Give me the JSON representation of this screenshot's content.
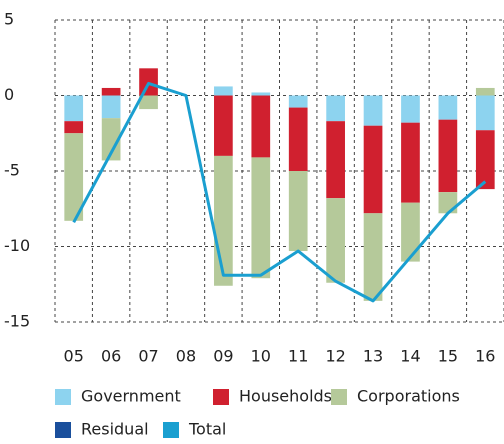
{
  "chart_data": {
    "type": "stacked-bar-line",
    "categories": [
      "05",
      "06",
      "07",
      "08",
      "09",
      "10",
      "11",
      "12",
      "13",
      "14",
      "15",
      "16"
    ],
    "series": [
      {
        "name": "Government",
        "color": "#8dd3ef",
        "type": "bar",
        "values": [
          -1.7,
          -1.5,
          0,
          0,
          0.6,
          0.2,
          -0.8,
          -1.7,
          -2.0,
          -1.8,
          -1.6,
          -2.3
        ]
      },
      {
        "name": "Households",
        "color": "#d0202f",
        "type": "bar",
        "values": [
          -0.8,
          0.5,
          1.8,
          0,
          -4.0,
          -4.1,
          -4.2,
          -5.1,
          -5.8,
          -5.3,
          -4.8,
          -3.9
        ]
      },
      {
        "name": "Corporations",
        "color": "#b5c99a",
        "type": "bar",
        "values": [
          -5.8,
          -2.8,
          -0.9,
          0,
          -8.6,
          -8.0,
          -5.3,
          -5.6,
          -5.8,
          -3.9,
          -1.4,
          0.5
        ]
      },
      {
        "name": "Residual",
        "color": "#1a4f9c",
        "type": "bar",
        "values": [
          null,
          null,
          null,
          null,
          null,
          null,
          null,
          null,
          null,
          null,
          null,
          null
        ]
      },
      {
        "name": "Total",
        "color": "#1a9fd0",
        "type": "line",
        "values": [
          -8.4,
          -3.8,
          0.8,
          0,
          -11.9,
          -11.9,
          -10.3,
          -12.3,
          -13.6,
          -10.7,
          -7.8,
          -5.7
        ]
      }
    ],
    "ylim": [
      -15,
      5
    ],
    "yticks": [
      5,
      0,
      -5,
      -10,
      -15
    ],
    "grid": true
  }
}
